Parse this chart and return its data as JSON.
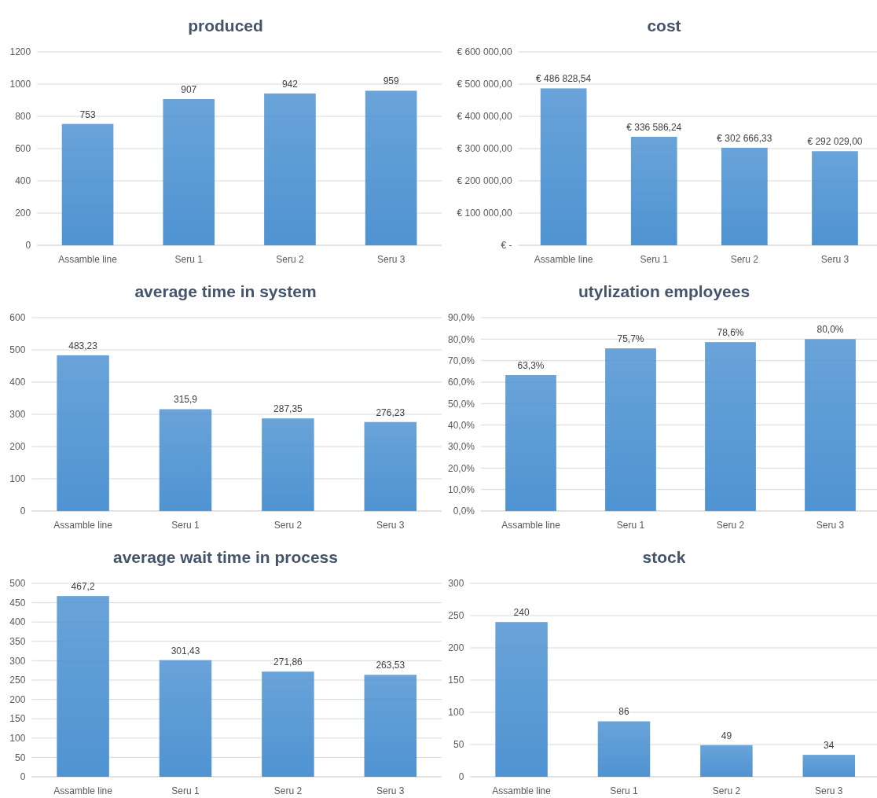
{
  "chart_data": [
    {
      "type": "bar",
      "title": "produced",
      "categories": [
        "Assamble line",
        "Seru 1",
        "Seru 2",
        "Seru 3"
      ],
      "values": [
        753,
        907,
        942,
        959
      ],
      "color": "#4f93d2",
      "ylim": [
        0,
        1200
      ],
      "yticks": [
        0,
        200,
        400,
        600,
        800,
        1000,
        1200
      ],
      "grid": "y",
      "data_labels": true
    },
    {
      "type": "bar",
      "title": "cost",
      "categories": [
        "Assamble line",
        "Seru 1",
        "Seru 2",
        "Seru 3"
      ],
      "values": [
        486828.54,
        336586.24,
        302666.33,
        292029
      ],
      "value_labels": [
        "€ 486 828,54",
        "€ 336 586,24",
        "€ 302 666,33",
        "€ 292 029,00"
      ],
      "color": "#4f93d2",
      "ylim": [
        0,
        600000
      ],
      "yticks": [
        {
          "value": 0,
          "label": "€ -"
        },
        {
          "value": 100000,
          "label": "€ 100 000,00"
        },
        {
          "value": 200000,
          "label": "€ 200 000,00"
        },
        {
          "value": 300000,
          "label": "€ 300 000,00"
        },
        {
          "value": 400000,
          "label": "€ 400 000,00"
        },
        {
          "value": 500000,
          "label": "€ 500 000,00"
        },
        {
          "value": 600000,
          "label": "€ 600 000,00"
        }
      ],
      "grid": "y"
    },
    {
      "type": "bar",
      "title": "average time in system",
      "categories": [
        "Assamble line",
        "Seru 1",
        "Seru 2",
        "Seru 3"
      ],
      "values": [
        483.23,
        315.9,
        287.35,
        276.23
      ],
      "value_labels": [
        "483,23",
        "315,9",
        "287,35",
        "276,23"
      ],
      "color": "#4f93d2",
      "ylim": [
        0,
        600
      ],
      "yticks": [
        0,
        100,
        200,
        300,
        400,
        500,
        600
      ],
      "grid": "y"
    },
    {
      "type": "bar",
      "title": "utylization employees",
      "categories": [
        "Assamble line",
        "Seru 1",
        "Seru 2",
        "Seru 3"
      ],
      "values": [
        63.3,
        75.7,
        78.6,
        80.0
      ],
      "value_labels": [
        "63,3%",
        "75,7%",
        "78,6%",
        "80,0%"
      ],
      "color": "#4f93d2",
      "ylim": [
        0,
        90
      ],
      "yticks": [
        {
          "value": 0,
          "label": "0,0%"
        },
        {
          "value": 10,
          "label": "10,0%"
        },
        {
          "value": 20,
          "label": "20,0%"
        },
        {
          "value": 30,
          "label": "30,0%"
        },
        {
          "value": 40,
          "label": "40,0%"
        },
        {
          "value": 50,
          "label": "50,0%"
        },
        {
          "value": 60,
          "label": "60,0%"
        },
        {
          "value": 70,
          "label": "70,0%"
        },
        {
          "value": 80,
          "label": "80,0%"
        },
        {
          "value": 90,
          "label": "90,0%"
        }
      ],
      "grid": "y"
    },
    {
      "type": "bar",
      "title": "average wait time in process",
      "categories": [
        "Assamble line",
        "Seru 1",
        "Seru 2",
        "Seru 3"
      ],
      "values": [
        467.2,
        301.43,
        271.86,
        263.53
      ],
      "value_labels": [
        "467,2",
        "301,43",
        "271,86",
        "263,53"
      ],
      "color": "#4f93d2",
      "ylim": [
        0,
        500
      ],
      "yticks": [
        0,
        50,
        100,
        150,
        200,
        250,
        300,
        350,
        400,
        450,
        500
      ],
      "grid": "y"
    },
    {
      "type": "bar",
      "title": "stock",
      "categories": [
        "Assamble line",
        "Seru 1",
        "Seru 2",
        "Seru 3"
      ],
      "values": [
        240,
        86,
        49,
        34
      ],
      "color": "#4f93d2",
      "ylim": [
        0,
        300
      ],
      "yticks": [
        0,
        50,
        100,
        150,
        200,
        250,
        300
      ],
      "grid": "y",
      "data_labels": true
    }
  ]
}
